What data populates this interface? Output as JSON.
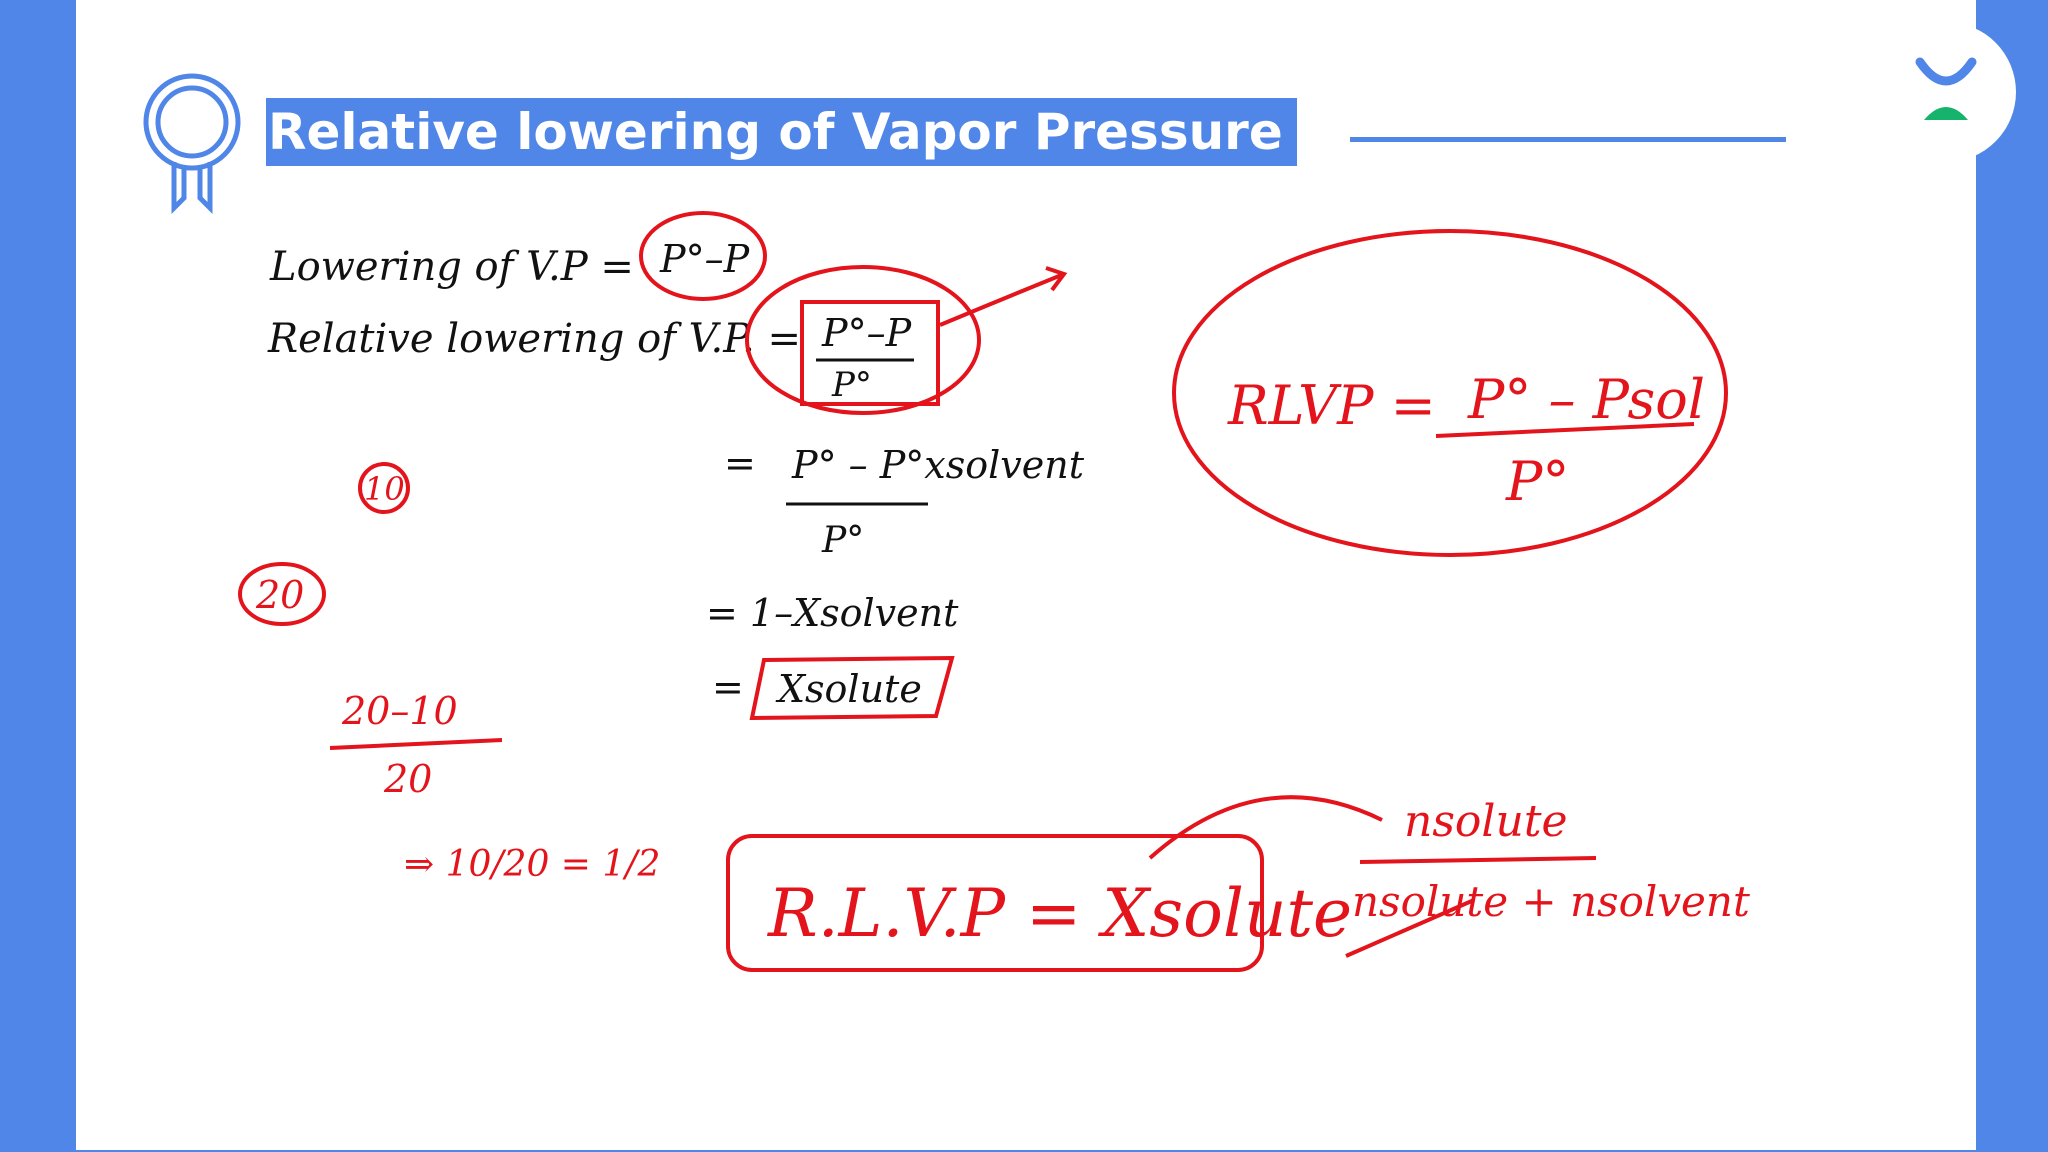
{
  "slide": {
    "title": "Relative lowering of Vapor Pressure",
    "colors": {
      "accent": "#4f86e8",
      "ink_black": "#111111",
      "ink_red": "#e3141b",
      "logo_green": "#15b36b"
    },
    "icons": [
      "ribbon-badge-icon",
      "logo-icon"
    ]
  },
  "notes": {
    "line1_label": "Lowering of V.P =",
    "line1_value": "P°–P",
    "line2_label": "Relative lowering of V.P. =",
    "line2_num": "P°–P",
    "line2_den": "P°",
    "step1_eq": "=",
    "step1_num": "P° – P°xsolvent",
    "step1_den": "P°",
    "step2": "= 1–Xsolvent",
    "step3_eq": "=",
    "step3_box": "Xsolute",
    "rlvp_label": "RLVP =",
    "rlvp_num": "P° – Psol",
    "rlvp_den": "P°",
    "circle_10": "10",
    "circle_20": "20",
    "example_num": "20–10",
    "example_den": "20",
    "example_result": "⇒ 10/20 = 1/2",
    "bottom_formula": "R.L.V.P = Xsolute",
    "mole_num": "nsolute",
    "mole_den": "nsolute + nsolvent"
  }
}
